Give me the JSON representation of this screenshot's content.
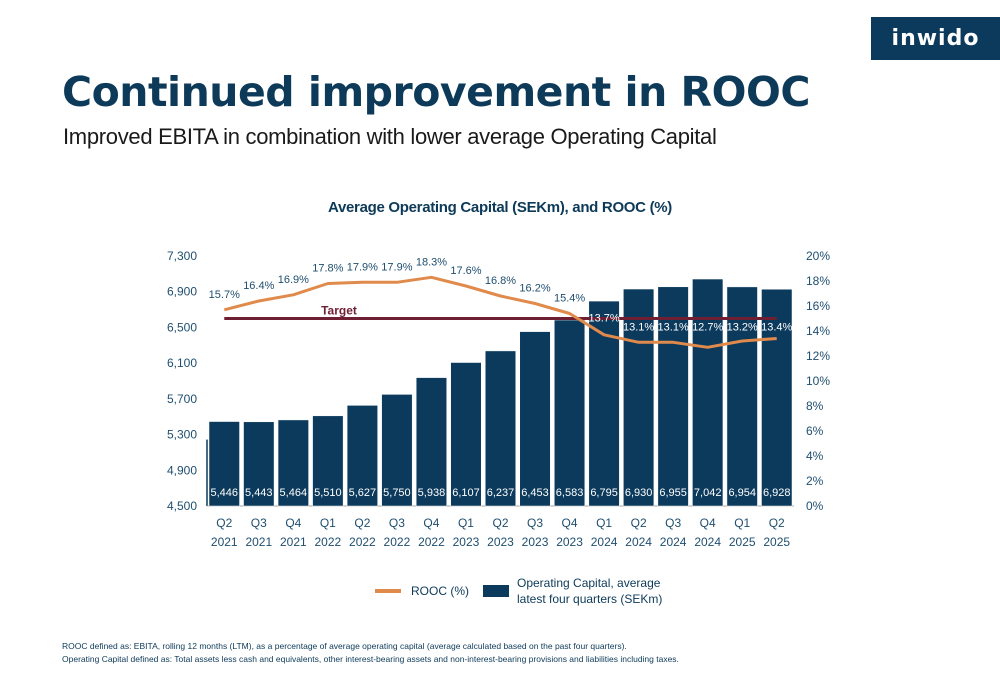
{
  "logo": {
    "text": "inwido"
  },
  "header": {
    "title": "Continued improvement in ROOC",
    "subtitle": "Improved EBITA in combination with lower average Operating Capital"
  },
  "chart_data": {
    "type": "bar",
    "title": "Average Operating Capital (SEKm), and ROOC (%)",
    "categories": [
      [
        "Q2",
        "2021"
      ],
      [
        "Q3",
        "2021"
      ],
      [
        "Q4",
        "2021"
      ],
      [
        "Q1",
        "2022"
      ],
      [
        "Q2",
        "2022"
      ],
      [
        "Q3",
        "2022"
      ],
      [
        "Q4",
        "2022"
      ],
      [
        "Q1",
        "2023"
      ],
      [
        "Q2",
        "2023"
      ],
      [
        "Q3",
        "2023"
      ],
      [
        "Q4",
        "2023"
      ],
      [
        "Q1",
        "2024"
      ],
      [
        "Q2",
        "2024"
      ],
      [
        "Q3",
        "2024"
      ],
      [
        "Q4",
        "2024"
      ],
      [
        "Q1",
        "2025"
      ],
      [
        "Q2",
        "2025"
      ]
    ],
    "series": [
      {
        "name": "Operating Capital, average latest four quarters (SEKm)",
        "type": "bar",
        "axis": "left",
        "color": "#0c3a5c",
        "values": [
          5446,
          5443,
          5464,
          5510,
          5627,
          5750,
          5938,
          6107,
          6237,
          6453,
          6583,
          6795,
          6930,
          6955,
          7042,
          6954,
          6928
        ],
        "labels": [
          "5,446",
          "5,443",
          "5,464",
          "5,510",
          "5,627",
          "5,750",
          "5,938",
          "6,107",
          "6,237",
          "6,453",
          "6,583",
          "6,795",
          "6,930",
          "6,955",
          "7,042",
          "6,954",
          "6,928"
        ]
      },
      {
        "name": "ROOC (%)",
        "type": "line",
        "axis": "right",
        "color": "#e08a4c",
        "values": [
          15.7,
          16.4,
          16.9,
          17.8,
          17.9,
          17.9,
          18.3,
          17.6,
          16.8,
          16.2,
          15.4,
          13.7,
          13.1,
          13.1,
          12.7,
          13.2,
          13.4
        ],
        "labels": [
          "15.7%",
          "16.4%",
          "16.9%",
          "17.8%",
          "17.9%",
          "17.9%",
          "18.3%",
          "17.6%",
          "16.8%",
          "16.2%",
          "15.4%",
          "13.7%",
          "13.1%",
          "13.1%",
          "12.7%",
          "13.2%",
          "13.4%"
        ]
      }
    ],
    "target": {
      "label": "Target",
      "value": 15,
      "axis": "right",
      "color": "#6e1f33"
    },
    "left_axis": {
      "min": 4500,
      "max": 7300,
      "ticks": [
        "4,500",
        "4,900",
        "5,300",
        "5,700",
        "6,100",
        "6,500",
        "6,900",
        "7,300"
      ]
    },
    "right_axis": {
      "min": 0,
      "max": 20,
      "ticks": [
        "0%",
        "2%",
        "4%",
        "6%",
        "8%",
        "10%",
        "12%",
        "14%",
        "16%",
        "18%",
        "20%"
      ]
    },
    "legend": {
      "placement": "bottom",
      "items": [
        "ROOC (%)",
        "Operating Capital, average",
        "latest four quarters (SEKm)"
      ]
    },
    "grid": false
  },
  "footnotes": [
    "ROOC defined as: EBITA, rolling 12 months (LTM), as a percentage of average operating capital (average calculated based on the past four quarters).",
    "Operating Capital defined as: Total assets less cash and equivalents, other interest-bearing assets and non-interest-bearing provisions and liabilities including taxes."
  ]
}
